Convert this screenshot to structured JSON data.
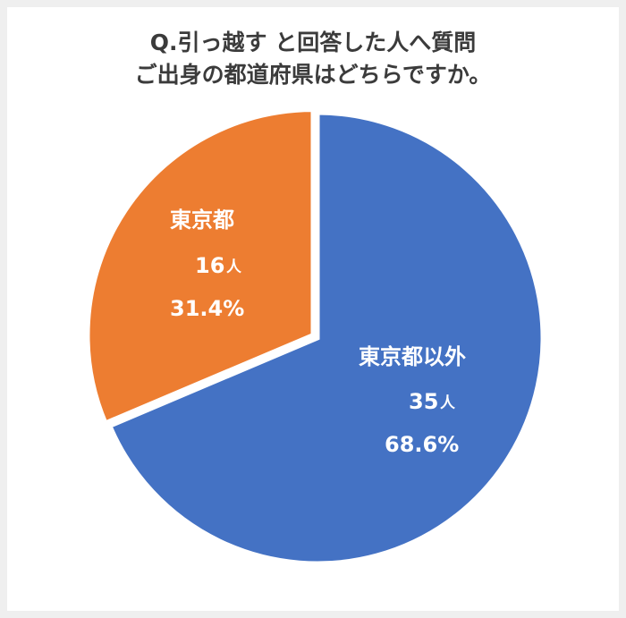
{
  "chart_data": {
    "type": "pie",
    "title": "Q.引っ越す と回答した人へ質問",
    "subtitle": "ご出身の都道府県はどちらですか。",
    "unit": "人",
    "slices": [
      {
        "label": "東京都以外",
        "count": "35",
        "percent": "68.6%",
        "value": 35,
        "color": "#4472c4"
      },
      {
        "label": "東京都",
        "count": "16",
        "percent": "31.4%",
        "value": 16,
        "color": "#ed7d31"
      }
    ]
  }
}
